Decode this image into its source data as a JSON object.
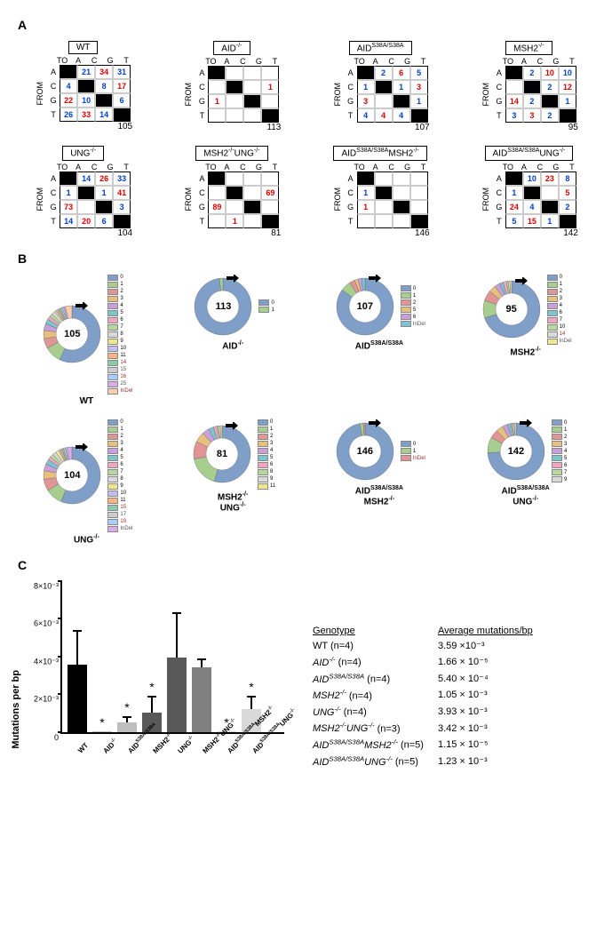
{
  "panelA": {
    "label": "A",
    "matrices": [
      {
        "title": "WT",
        "count": 105,
        "cells": [
          [
            "",
            "21",
            "34",
            "31"
          ],
          [
            "4",
            "",
            "8",
            "17"
          ],
          [
            "22",
            "10",
            "",
            "6"
          ],
          [
            "26",
            "33",
            "14",
            ""
          ]
        ],
        "colors": [
          [
            "",
            "b",
            "r",
            "b"
          ],
          [
            "b",
            "",
            "b",
            "r"
          ],
          [
            "r",
            "b",
            "",
            "b"
          ],
          [
            "b",
            "r",
            "b",
            ""
          ]
        ]
      },
      {
        "title": "AID<sup>-/-</sup>",
        "count": 113,
        "cells": [
          [
            "",
            "",
            "",
            ""
          ],
          [
            "",
            "",
            "",
            "1"
          ],
          [
            "1",
            "",
            "",
            ""
          ],
          [
            "",
            "",
            "",
            ""
          ]
        ],
        "colors": [
          [
            "",
            "",
            "",
            ""
          ],
          [
            "",
            "",
            "",
            "r"
          ],
          [
            "r",
            "",
            "",
            ""
          ],
          [
            "",
            "",
            "",
            ""
          ]
        ]
      },
      {
        "title": "AID<sup>S38A/S38A</sup>",
        "count": 107,
        "cells": [
          [
            "",
            "2",
            "6",
            "5"
          ],
          [
            "1",
            "",
            "1",
            "3"
          ],
          [
            "3",
            "",
            "",
            "1"
          ],
          [
            "4",
            "4",
            "4",
            ""
          ]
        ],
        "colors": [
          [
            "",
            "b",
            "r",
            "b"
          ],
          [
            "b",
            "",
            "b",
            "r"
          ],
          [
            "r",
            "",
            "",
            "b"
          ],
          [
            "b",
            "r",
            "b",
            ""
          ]
        ]
      },
      {
        "title": "MSH2<sup>-/-</sup>",
        "count": 95,
        "cells": [
          [
            "",
            "2",
            "10",
            "10"
          ],
          [
            "",
            "",
            "2",
            "12"
          ],
          [
            "14",
            "2",
            "",
            "1"
          ],
          [
            "3",
            "3",
            "2",
            ""
          ]
        ],
        "colors": [
          [
            "",
            "b",
            "r",
            "b"
          ],
          [
            "",
            "",
            "b",
            "r"
          ],
          [
            "r",
            "b",
            "",
            "b"
          ],
          [
            "b",
            "r",
            "b",
            ""
          ]
        ]
      },
      {
        "title": "UNG<sup>-/-</sup>",
        "count": 104,
        "cells": [
          [
            "",
            "14",
            "26",
            "33"
          ],
          [
            "1",
            "",
            "1",
            "41"
          ],
          [
            "73",
            "",
            "",
            "3"
          ],
          [
            "14",
            "20",
            "6",
            ""
          ]
        ],
        "colors": [
          [
            "",
            "b",
            "r",
            "b"
          ],
          [
            "b",
            "",
            "b",
            "r"
          ],
          [
            "r",
            "",
            "",
            "b"
          ],
          [
            "b",
            "r",
            "b",
            ""
          ]
        ]
      },
      {
        "title": "MSH2<sup>-/-</sup>UNG<sup>-/-</sup>",
        "count": 81,
        "cells": [
          [
            "",
            "",
            "",
            ""
          ],
          [
            "",
            "",
            "",
            "69"
          ],
          [
            "89",
            "",
            "",
            ""
          ],
          [
            "",
            "1",
            "",
            ""
          ]
        ],
        "colors": [
          [
            "",
            "",
            "",
            ""
          ],
          [
            "",
            "",
            "",
            "r"
          ],
          [
            "r",
            "",
            "",
            ""
          ],
          [
            "",
            "r",
            "",
            ""
          ]
        ]
      },
      {
        "title": "AID<sup>S38A/S38A</sup>MSH2<sup>-/-</sup>",
        "count": 146,
        "cells": [
          [
            "",
            "",
            "",
            ""
          ],
          [
            "1",
            "",
            "",
            ""
          ],
          [
            "1",
            "",
            "",
            ""
          ],
          [
            "",
            "",
            "",
            ""
          ]
        ],
        "colors": [
          [
            "",
            "",
            "",
            ""
          ],
          [
            "b",
            "",
            "",
            ""
          ],
          [
            "r",
            "",
            "",
            ""
          ],
          [
            "",
            "",
            "",
            ""
          ]
        ]
      },
      {
        "title": "AID<sup>S38A/S38A</sup>UNG<sup>-/-</sup>",
        "count": 142,
        "cells": [
          [
            "",
            "10",
            "23",
            "8"
          ],
          [
            "1",
            "",
            "",
            "5"
          ],
          [
            "24",
            "4",
            "",
            "2"
          ],
          [
            "5",
            "15",
            "1",
            ""
          ]
        ],
        "colors": [
          [
            "",
            "b",
            "r",
            "b"
          ],
          [
            "b",
            "",
            "",
            "r"
          ],
          [
            "r",
            "b",
            "",
            "b"
          ],
          [
            "b",
            "r",
            "b",
            ""
          ]
        ]
      }
    ]
  },
  "panelB": {
    "label": "B",
    "palette": [
      "#7f9fc9",
      "#a8ce8f",
      "#e29595",
      "#e8c07e",
      "#c9a0dc",
      "#7ec4cf",
      "#f4a6c0",
      "#b5d99c",
      "#d9d9d9",
      "#f0e68c",
      "#c0c0f0",
      "#ffb380",
      "#88ccaa",
      "#cccccc",
      "#aaccff",
      "#ddaaee",
      "#ffccaa",
      "#bbddcc",
      "#a52a2a"
    ],
    "donuts": [
      {
        "label": "WT",
        "count": 105,
        "items": [
          0,
          1,
          2,
          3,
          4,
          5,
          6,
          7,
          8,
          9,
          10,
          11,
          14,
          15,
          16,
          25,
          "InDel"
        ],
        "slices": [
          60,
          10,
          6,
          5,
          4,
          3,
          2,
          2,
          2,
          1,
          1,
          1,
          1,
          1,
          1,
          1,
          4
        ]
      },
      {
        "label": "AID<sup>-/-</sup>",
        "count": 113,
        "items": [
          0,
          1
        ],
        "slices": [
          98,
          2
        ]
      },
      {
        "label": "AID<sup>S38A/S38A</sup>",
        "count": 107,
        "items": [
          0,
          1,
          2,
          5,
          6,
          "InDel"
        ],
        "slices": [
          85,
          6,
          3,
          2,
          2,
          2
        ]
      },
      {
        "label": "MSH2<sup>-/-</sup>",
        "count": 95,
        "items": [
          0,
          1,
          2,
          3,
          4,
          6,
          7,
          10,
          14,
          "InDel"
        ],
        "slices": [
          70,
          10,
          6,
          4,
          3,
          2,
          2,
          1,
          1,
          1
        ]
      },
      {
        "label": "UNG<sup>-/-</sup>",
        "count": 104,
        "items": [
          0,
          1,
          2,
          3,
          4,
          5,
          6,
          7,
          8,
          9,
          10,
          11,
          15,
          17,
          19,
          "InDel"
        ],
        "slices": [
          58,
          10,
          7,
          5,
          4,
          3,
          2,
          2,
          2,
          2,
          1,
          1,
          1,
          1,
          1,
          3
        ]
      },
      {
        "label": "MSH2<sup>-/-</sup><br>UNG<sup>-/-</sup>",
        "count": 81,
        "items": [
          0,
          1,
          2,
          3,
          4,
          5,
          6,
          8,
          9,
          11
        ],
        "slices": [
          55,
          18,
          10,
          6,
          4,
          3,
          2,
          1,
          1,
          1
        ]
      },
      {
        "label": "AID<sup>S38A/S38A</sup><br>MSH2<sup>-/-</sup>",
        "count": 146,
        "items": [
          0,
          1,
          "InDel"
        ],
        "slices": [
          97,
          2,
          1
        ]
      },
      {
        "label": "AID<sup>S38A/S38A</sup><br>UNG<sup>-/-</sup>",
        "count": 142,
        "items": [
          0,
          1,
          2,
          3,
          4,
          5,
          6,
          7,
          9
        ],
        "slices": [
          75,
          9,
          5,
          4,
          3,
          2,
          1,
          1,
          1
        ]
      }
    ]
  },
  "panelC": {
    "label": "C",
    "ylabel": "Mutations per bp",
    "ymax": 0.008,
    "yticks": [
      "0",
      "2×10⁻³",
      "4×10⁻³",
      "6×10⁻³",
      "8×10⁻³"
    ],
    "bars": [
      {
        "label": "WT",
        "genotype_html": "WT",
        "value": 0.00359,
        "err": 0.0018,
        "star": false,
        "fill": "#000000"
      },
      {
        "label": "AID-/-",
        "genotype_html": "AID<sup>-/-</sup>",
        "value": 1.66e-05,
        "err": 0,
        "star": true,
        "fill": "#bfbfbf"
      },
      {
        "label": "AIDS38A/S38A",
        "genotype_html": "AID<sup>S38A/S38A</sup>",
        "value": 0.00054,
        "err": 0.0003,
        "star": true,
        "fill": "#bfbfbf"
      },
      {
        "label": "MSH2-/-",
        "genotype_html": "MSH2<sup>-/-</sup>",
        "value": 0.00105,
        "err": 0.0009,
        "star": true,
        "fill": "#595959"
      },
      {
        "label": "UNG-/-",
        "genotype_html": "UNG<sup>-/-</sup>",
        "value": 0.00393,
        "err": 0.0024,
        "star": false,
        "fill": "#595959"
      },
      {
        "label": "MSH2-/-UNG-/-",
        "genotype_html": "MSH2<sup>-/-</sup>UNG<sup>-/-</sup>",
        "value": 0.00342,
        "err": 0.0005,
        "star": false,
        "fill": "#808080"
      },
      {
        "label": "AIDS38A/S38AMSH2-/-",
        "genotype_html": "AID<sup>S38A/S38A</sup>MSH2<sup>-/-</sup>",
        "value": 1.15e-05,
        "err": 0,
        "star": true,
        "fill": "#d9d9d9"
      },
      {
        "label": "AIDS38A/S38AUNG-/-",
        "genotype_html": "AID<sup>S38A/S38A</sup>UNG<sup>-/-</sup>",
        "value": 0.00123,
        "err": 0.0007,
        "star": true,
        "fill": "#d9d9d9"
      }
    ],
    "table": {
      "headers": [
        "Genotype",
        "Average mutations/bp"
      ],
      "rows": [
        [
          "WT (n=4)",
          "3.59 ×10⁻³"
        ],
        [
          "<i>AID<sup>-/-</sup></i> (n=4)",
          "1.66 × 10⁻⁵"
        ],
        [
          "<i>AID<sup>S38A/S38A</sup></i> (n=4)",
          "5.40 × 10⁻⁴"
        ],
        [
          "<i>MSH2<sup>-/-</sup></i> (n=4)",
          "1.05 × 10⁻³"
        ],
        [
          "<i>UNG<sup>-/-</sup></i> (n=4)",
          "3.93 × 10⁻³"
        ],
        [
          "<i>MSH2<sup>-/-</sup>UNG<sup>-/-</sup></i> (n=3)",
          "3.42 × 10⁻³"
        ],
        [
          "<i>AID<sup>S38A/S38A</sup>MSH2<sup>-/-</sup></i> (n=5)",
          "1.15 × 10⁻⁵"
        ],
        [
          "<i>AID<sup>S38A/S38A</sup>UNG<sup>-/-</sup></i> (n=5)",
          "1.23 × 10⁻³"
        ]
      ]
    }
  }
}
